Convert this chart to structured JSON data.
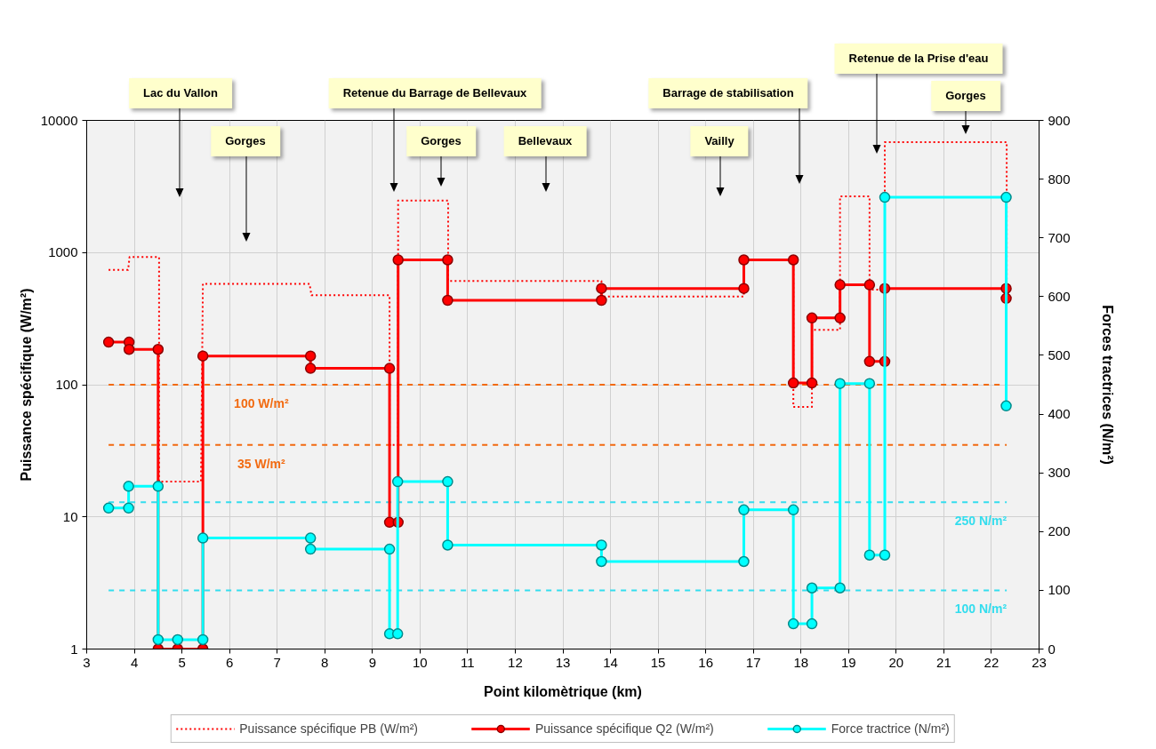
{
  "chart_data": {
    "type": "line",
    "xlabel": "Point kilomètrique (km)",
    "ylabel": "Puissance spécifique (W/m²)",
    "y2label": "Forces tractrices (N/m²)",
    "xlim": [
      3,
      23
    ],
    "xticks": [
      3,
      4,
      5,
      6,
      7,
      8,
      9,
      10,
      11,
      12,
      13,
      14,
      15,
      16,
      17,
      18,
      19,
      20,
      21,
      22,
      23
    ],
    "ylim": [
      1,
      10000
    ],
    "yticks": [
      1,
      10,
      100,
      1000,
      10000
    ],
    "y2lim": [
      0,
      900
    ],
    "y2ticks": [
      0,
      100,
      200,
      300,
      400,
      500,
      600,
      700,
      800,
      900
    ],
    "log": "y",
    "grid": true,
    "legend": "bottom",
    "marker": "circle",
    "line_style": "solid",
    "series": [
      {
        "name": "Puissance spécifique PB (W/m²)",
        "color": "#ff0000",
        "marker": "none",
        "line_style": "dotted",
        "x": [
          3.46,
          3.87,
          3.9,
          4.52,
          4.52,
          5.4,
          5.44,
          7.68,
          7.72,
          9.36,
          9.36,
          9.54,
          9.54,
          10.59,
          10.59,
          13.81,
          13.81,
          16.8,
          16.8,
          17.84,
          17.84,
          18.23,
          18.23,
          18.82,
          18.82,
          19.44,
          19.44,
          19.76,
          19.76,
          22.32,
          22.32
        ],
        "values": [
          740,
          740,
          925,
          925,
          18.5,
          18.5,
          580,
          580,
          475,
          475,
          35,
          35,
          2470,
          2470,
          610,
          610,
          465,
          465,
          880,
          880,
          68,
          68,
          260,
          260,
          2660,
          2660,
          525,
          525,
          6840,
          6840,
          530
        ]
      },
      {
        "name": "Puissance spécifique Q2 (W/m²)",
        "color": "#ff0000",
        "x": [
          3.46,
          3.89,
          3.89,
          4.5,
          4.5,
          4.91,
          5.44,
          5.44,
          7.7,
          7.7,
          9.36,
          9.36,
          9.54,
          9.54,
          10.58,
          10.58,
          13.81,
          13.81,
          16.8,
          16.8,
          17.84,
          17.84,
          18.23,
          18.23,
          18.82,
          18.82,
          19.44,
          19.44,
          19.76,
          19.76,
          22.31,
          22.31
        ],
        "values": [
          210,
          210,
          185,
          185,
          1,
          1,
          1,
          165,
          165,
          133,
          133,
          9.1,
          9.1,
          880,
          880,
          435,
          435,
          535,
          535,
          880,
          880,
          103,
          103,
          320,
          320,
          570,
          570,
          150,
          150,
          535,
          535,
          450
        ]
      },
      {
        "name": "Force tractrice (N/m²)",
        "color": "#00ffff",
        "axis": "y2",
        "x": [
          3.46,
          3.88,
          3.88,
          4.5,
          4.5,
          4.91,
          5.44,
          5.44,
          7.7,
          7.7,
          9.36,
          9.36,
          9.53,
          9.53,
          10.58,
          10.58,
          13.81,
          13.81,
          16.8,
          16.8,
          17.84,
          17.84,
          18.23,
          18.23,
          18.82,
          18.82,
          19.44,
          19.44,
          19.76,
          19.76,
          22.31,
          22.31
        ],
        "values": [
          240,
          240,
          277,
          277,
          16,
          16,
          16,
          189,
          189,
          170,
          170,
          26,
          26,
          285,
          285,
          177,
          177,
          149,
          149,
          237,
          237,
          43,
          43,
          104,
          104,
          452,
          452,
          160,
          160,
          769,
          769,
          414
        ]
      }
    ],
    "ref_lines": [
      {
        "axis": "y",
        "value": 100,
        "label": "100 W/m²",
        "color": "#f26a10",
        "line_style": "dashed"
      },
      {
        "axis": "y",
        "value": 35,
        "label": "35 W/m²",
        "color": "#f26a10",
        "line_style": "dashed"
      },
      {
        "axis": "y2",
        "value": 250,
        "label": "250 N/m²",
        "color": "#33ddee",
        "line_style": "dashed"
      },
      {
        "axis": "y2",
        "value": 100,
        "label": "100 N/m²",
        "color": "#33ddee",
        "line_style": "dashed"
      }
    ],
    "annotations": [
      "Lac du Vallon",
      "Gorges",
      "Retenue du Barrage de Bellevaux",
      "Gorges",
      "Bellevaux",
      "Vailly",
      "Barrage de stabilisation",
      "Retenue de la Prise d'eau",
      "Gorges"
    ]
  }
}
